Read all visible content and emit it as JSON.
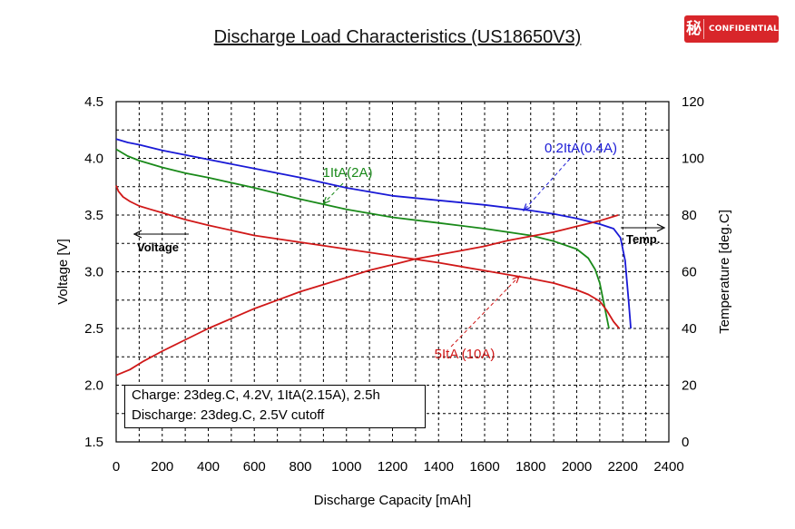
{
  "title": "Discharge Load Characteristics (US18650V3)",
  "badge": {
    "kanji": "秘",
    "text": "CONFIDENTIAL",
    "color": "#d8262a"
  },
  "note": {
    "line1": "Charge: 23deg.C, 4.2V, 1ItA(2.15A), 2.5h",
    "line2": "Discharge: 23deg.C, 2.5V cutoff"
  },
  "chart_data": {
    "type": "line",
    "title": "Discharge Load Characteristics (US18650V3)",
    "xlabel": "Discharge Capacity [mAh]",
    "ylabel": "Voltage [V]",
    "y2label": "Temperature [deg.C]",
    "xlim": [
      0,
      2400
    ],
    "ylim": [
      1.5,
      4.5
    ],
    "y2lim": [
      0,
      120
    ],
    "xticks": [
      0,
      200,
      400,
      600,
      800,
      1000,
      1200,
      1400,
      1600,
      1800,
      2000,
      2200,
      2400
    ],
    "yticks": [
      "1.5",
      "2.0",
      "2.5",
      "3.0",
      "3.5",
      "4.0",
      "4.5"
    ],
    "y2ticks": [
      0,
      20,
      40,
      60,
      80,
      100,
      120
    ],
    "grid": true,
    "series": [
      {
        "name": "0.2ItA(0.4A)",
        "color": "#1a1ad6",
        "axis": "left",
        "x": [
          0,
          50,
          100,
          200,
          300,
          400,
          600,
          800,
          1000,
          1200,
          1400,
          1600,
          1800,
          1900,
          2000,
          2100,
          2160,
          2190,
          2210,
          2225,
          2235
        ],
        "y": [
          4.17,
          4.14,
          4.12,
          4.07,
          4.03,
          3.99,
          3.91,
          3.83,
          3.74,
          3.67,
          3.63,
          3.59,
          3.54,
          3.51,
          3.47,
          3.42,
          3.38,
          3.3,
          3.1,
          2.75,
          2.5
        ]
      },
      {
        "name": "1ItA(2A)",
        "color": "#1a8a1a",
        "axis": "left",
        "x": [
          0,
          50,
          100,
          200,
          300,
          400,
          600,
          800,
          1000,
          1200,
          1400,
          1600,
          1800,
          1900,
          2000,
          2050,
          2080,
          2100,
          2115,
          2130,
          2140
        ],
        "y": [
          4.08,
          4.02,
          3.98,
          3.92,
          3.87,
          3.83,
          3.74,
          3.64,
          3.55,
          3.48,
          3.43,
          3.38,
          3.32,
          3.27,
          3.2,
          3.12,
          3.02,
          2.9,
          2.75,
          2.6,
          2.5
        ]
      },
      {
        "name": "5ItA (10A)",
        "color": "#d01818",
        "axis": "left",
        "x": [
          0,
          10,
          30,
          60,
          100,
          150,
          200,
          300,
          400,
          600,
          800,
          1000,
          1200,
          1400,
          1600,
          1800,
          1900,
          2000,
          2050,
          2100,
          2130,
          2160,
          2185
        ],
        "y": [
          3.76,
          3.71,
          3.66,
          3.62,
          3.58,
          3.55,
          3.52,
          3.46,
          3.41,
          3.32,
          3.26,
          3.2,
          3.14,
          3.08,
          3.01,
          2.94,
          2.9,
          2.84,
          2.8,
          2.74,
          2.66,
          2.56,
          2.5
        ]
      },
      {
        "name": "Temp.",
        "color": "#d01818",
        "axis": "right",
        "x": [
          0,
          60,
          120,
          200,
          300,
          400,
          500,
          600,
          700,
          800,
          900,
          1000,
          1100,
          1200,
          1300,
          1400,
          1500,
          1600,
          1700,
          1800,
          1900,
          2000,
          2100,
          2180
        ],
        "y": [
          23.5,
          25.5,
          28.5,
          32,
          36,
          40,
          43.5,
          47,
          50,
          53,
          55.5,
          58,
          60.5,
          62.5,
          64.5,
          66,
          67.5,
          69,
          71,
          72.5,
          74,
          76,
          78,
          80
        ]
      }
    ],
    "annotations": [
      {
        "text": "0.2ItA(0.4A)",
        "color": "#1a1ad6",
        "pointer": {
          "x": 1770,
          "y": 3.54
        }
      },
      {
        "text": "1ItA(2A)",
        "color": "#1a8a1a",
        "pointer": {
          "x": 900,
          "y": 3.6
        }
      },
      {
        "text": "5ItA (10A)",
        "color": "#d01818",
        "pointer": {
          "x": 1750,
          "y": 2.96
        }
      },
      {
        "text": "Voltage",
        "color": "#000000"
      },
      {
        "text": "Temp.",
        "color": "#000000"
      }
    ]
  }
}
